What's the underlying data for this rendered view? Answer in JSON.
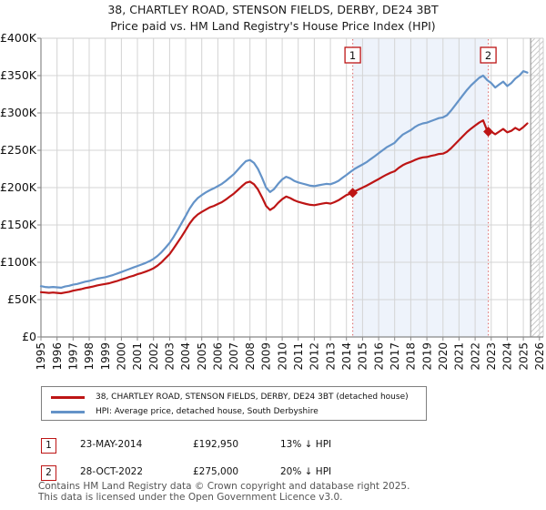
{
  "chart_data": {
    "type": "line",
    "title": "38, CHARTLEY ROAD, STENSON FIELDS, DERBY, DE24 3BT",
    "subtitle": "Price paid vs. HM Land Registry's House Price Index (HPI)",
    "units": "GBP thousands",
    "x_start": 1995,
    "x_step": 0.25,
    "xlim": [
      1995,
      2026.25
    ],
    "ylim": [
      0,
      400
    ],
    "grid": true,
    "legend_position": "bottom",
    "x_ticks": [
      1995,
      1996,
      1997,
      1998,
      1999,
      2000,
      2001,
      2002,
      2003,
      2004,
      2005,
      2006,
      2007,
      2008,
      2009,
      2010,
      2011,
      2012,
      2013,
      2014,
      2015,
      2016,
      2017,
      2018,
      2019,
      2020,
      2021,
      2022,
      2023,
      2024,
      2025,
      2026
    ],
    "y_ticks": {
      "values": [
        0,
        50,
        100,
        150,
        200,
        250,
        300,
        350,
        400
      ],
      "labels": [
        "£0",
        "£50K",
        "£100K",
        "£150K",
        "£200K",
        "£250K",
        "£300K",
        "£350K",
        "£400K"
      ]
    },
    "series": [
      {
        "name": "38, CHARTLEY ROAD, STENSON FIELDS, DERBY, DE24 3BT (detached house)",
        "color": "#bd1515",
        "values": [
          60,
          59.5,
          59,
          59.5,
          59,
          58.5,
          59.5,
          60.5,
          62,
          63,
          64,
          65.5,
          66.5,
          67.5,
          69,
          70,
          71,
          72,
          73.5,
          75,
          77,
          78.5,
          80.5,
          82,
          84,
          85.5,
          87.5,
          89.5,
          92,
          95.5,
          100,
          105.5,
          111,
          118.5,
          126.5,
          134.5,
          143,
          152,
          159,
          164,
          167.5,
          170.5,
          173.5,
          175.5,
          178,
          180.5,
          184,
          188,
          192,
          197,
          202,
          206.5,
          208,
          204.5,
          197.5,
          187,
          175.5,
          170,
          173.5,
          179.5,
          184.5,
          188,
          186,
          183,
          181,
          179.5,
          178,
          177,
          176.5,
          177.5,
          178.5,
          179.5,
          178.5,
          180.5,
          183,
          186.5,
          190,
          192,
          195,
          197.5,
          200,
          202.5,
          205.5,
          208.5,
          211.5,
          214.5,
          217.5,
          220,
          222,
          226.5,
          230,
          232.5,
          234.5,
          237,
          239,
          240.5,
          241,
          242.5,
          243.5,
          245,
          245.5,
          248,
          252.5,
          258,
          263.5,
          269,
          274.5,
          279,
          283,
          287,
          290,
          276.5,
          275,
          271.5,
          275,
          278.5,
          274,
          276,
          280,
          277,
          281,
          286
        ]
      },
      {
        "name": "HPI: Average price, detached house, South Derbyshire",
        "color": "#6493c8",
        "values": [
          68,
          67,
          66.5,
          67,
          66.5,
          66,
          67.5,
          68.5,
          70,
          71,
          72.5,
          74,
          75,
          76.5,
          78,
          79,
          80,
          81.5,
          83,
          85,
          87,
          89,
          91,
          93,
          95,
          97,
          99,
          101.5,
          104.5,
          108.5,
          113.5,
          119.5,
          126,
          134,
          143,
          152.5,
          162,
          172,
          180,
          186,
          190,
          193.5,
          196.5,
          199,
          202,
          205,
          209,
          213.5,
          218,
          224,
          230,
          235.5,
          237,
          233,
          225,
          213,
          200,
          194,
          198,
          205,
          211,
          214.5,
          212.5,
          209,
          207,
          205.5,
          204,
          202.5,
          202,
          203,
          204,
          205,
          204.5,
          206.5,
          209,
          213,
          217,
          221,
          225,
          228,
          231,
          234,
          238,
          242,
          246,
          250,
          254,
          257,
          260,
          266,
          271,
          274,
          277,
          281,
          284,
          286,
          287,
          289,
          291,
          293,
          294,
          297,
          303,
          310,
          317,
          324,
          331,
          337,
          342,
          347,
          350,
          344,
          340,
          334,
          338,
          342,
          336,
          340,
          346,
          350,
          356,
          354
        ]
      }
    ],
    "sales": [
      {
        "label": "1",
        "date": "23-MAY-2014",
        "price": "£192,950",
        "price_k": 192.95,
        "year": 2014.39,
        "vs_hpi": "13% ↓ HPI"
      },
      {
        "label": "2",
        "date": "28-OCT-2022",
        "price": "£275,000",
        "price_k": 275,
        "year": 2022.82,
        "vs_hpi": "20% ↓ HPI"
      }
    ],
    "shaded_region": [
      2014.39,
      2022.82
    ],
    "hatch_start": 2025.45,
    "colors": {
      "red": "#bd1515",
      "blue": "#6493c8",
      "grid": "#d4d4d4",
      "shade": "#eef3fb",
      "dotted": "#e07878",
      "spine": "#888888",
      "light_spine": "#cfcfcf",
      "hatch": "#c9c9c9",
      "tick_text": "#111111"
    }
  },
  "footer": {
    "line1": "Contains HM Land Registry data © Crown copyright and database right 2025.",
    "line2": "This data is licensed under the Open Government Licence v3.0."
  }
}
